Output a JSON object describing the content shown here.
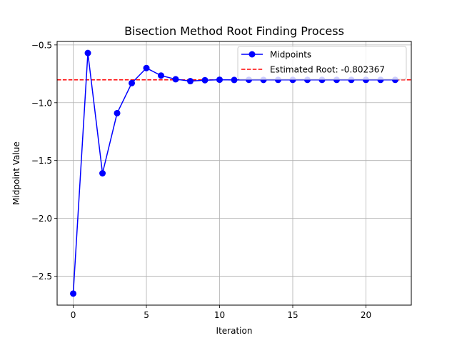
{
  "chart_data": {
    "type": "line",
    "title": "Bisection Method Root Finding Process",
    "xlabel": "Iteration",
    "ylabel": "Midpoint Value",
    "xlim": [
      -1.1,
      23.1
    ],
    "ylim": [
      -2.75,
      -0.47
    ],
    "x_ticks": [
      0,
      5,
      10,
      15,
      20
    ],
    "y_ticks": [
      -2.5,
      -2.0,
      -1.5,
      -1.0,
      -0.5
    ],
    "x_tick_labels": [
      "0",
      "5",
      "10",
      "15",
      "20"
    ],
    "y_tick_labels": [
      "−2.5",
      "−2.0",
      "−1.5",
      "−1.0",
      "−0.5"
    ],
    "grid": true,
    "legend_position": "top-right",
    "series": [
      {
        "name": "Midpoints",
        "color": "#0000ff",
        "marker": "circle",
        "x": [
          0,
          1,
          2,
          3,
          4,
          5,
          6,
          7,
          8,
          9,
          10,
          11,
          12,
          13,
          14,
          15,
          16,
          17,
          18,
          19,
          20,
          21,
          22
        ],
        "y": [
          -2.65,
          -0.57,
          -1.61,
          -1.09,
          -0.83,
          -0.7,
          -0.765,
          -0.797,
          -0.813,
          -0.805,
          -0.801,
          -0.803,
          -0.802,
          -0.8025,
          -0.8022,
          -0.8024,
          -0.8023,
          -0.8024,
          -0.8023,
          -0.8024,
          -0.8024,
          -0.8024,
          -0.8024
        ]
      }
    ],
    "reference_line": {
      "name": "Estimated Root: -0.802367",
      "value": -0.802367,
      "color": "#ff0000",
      "style": "dashed"
    }
  }
}
